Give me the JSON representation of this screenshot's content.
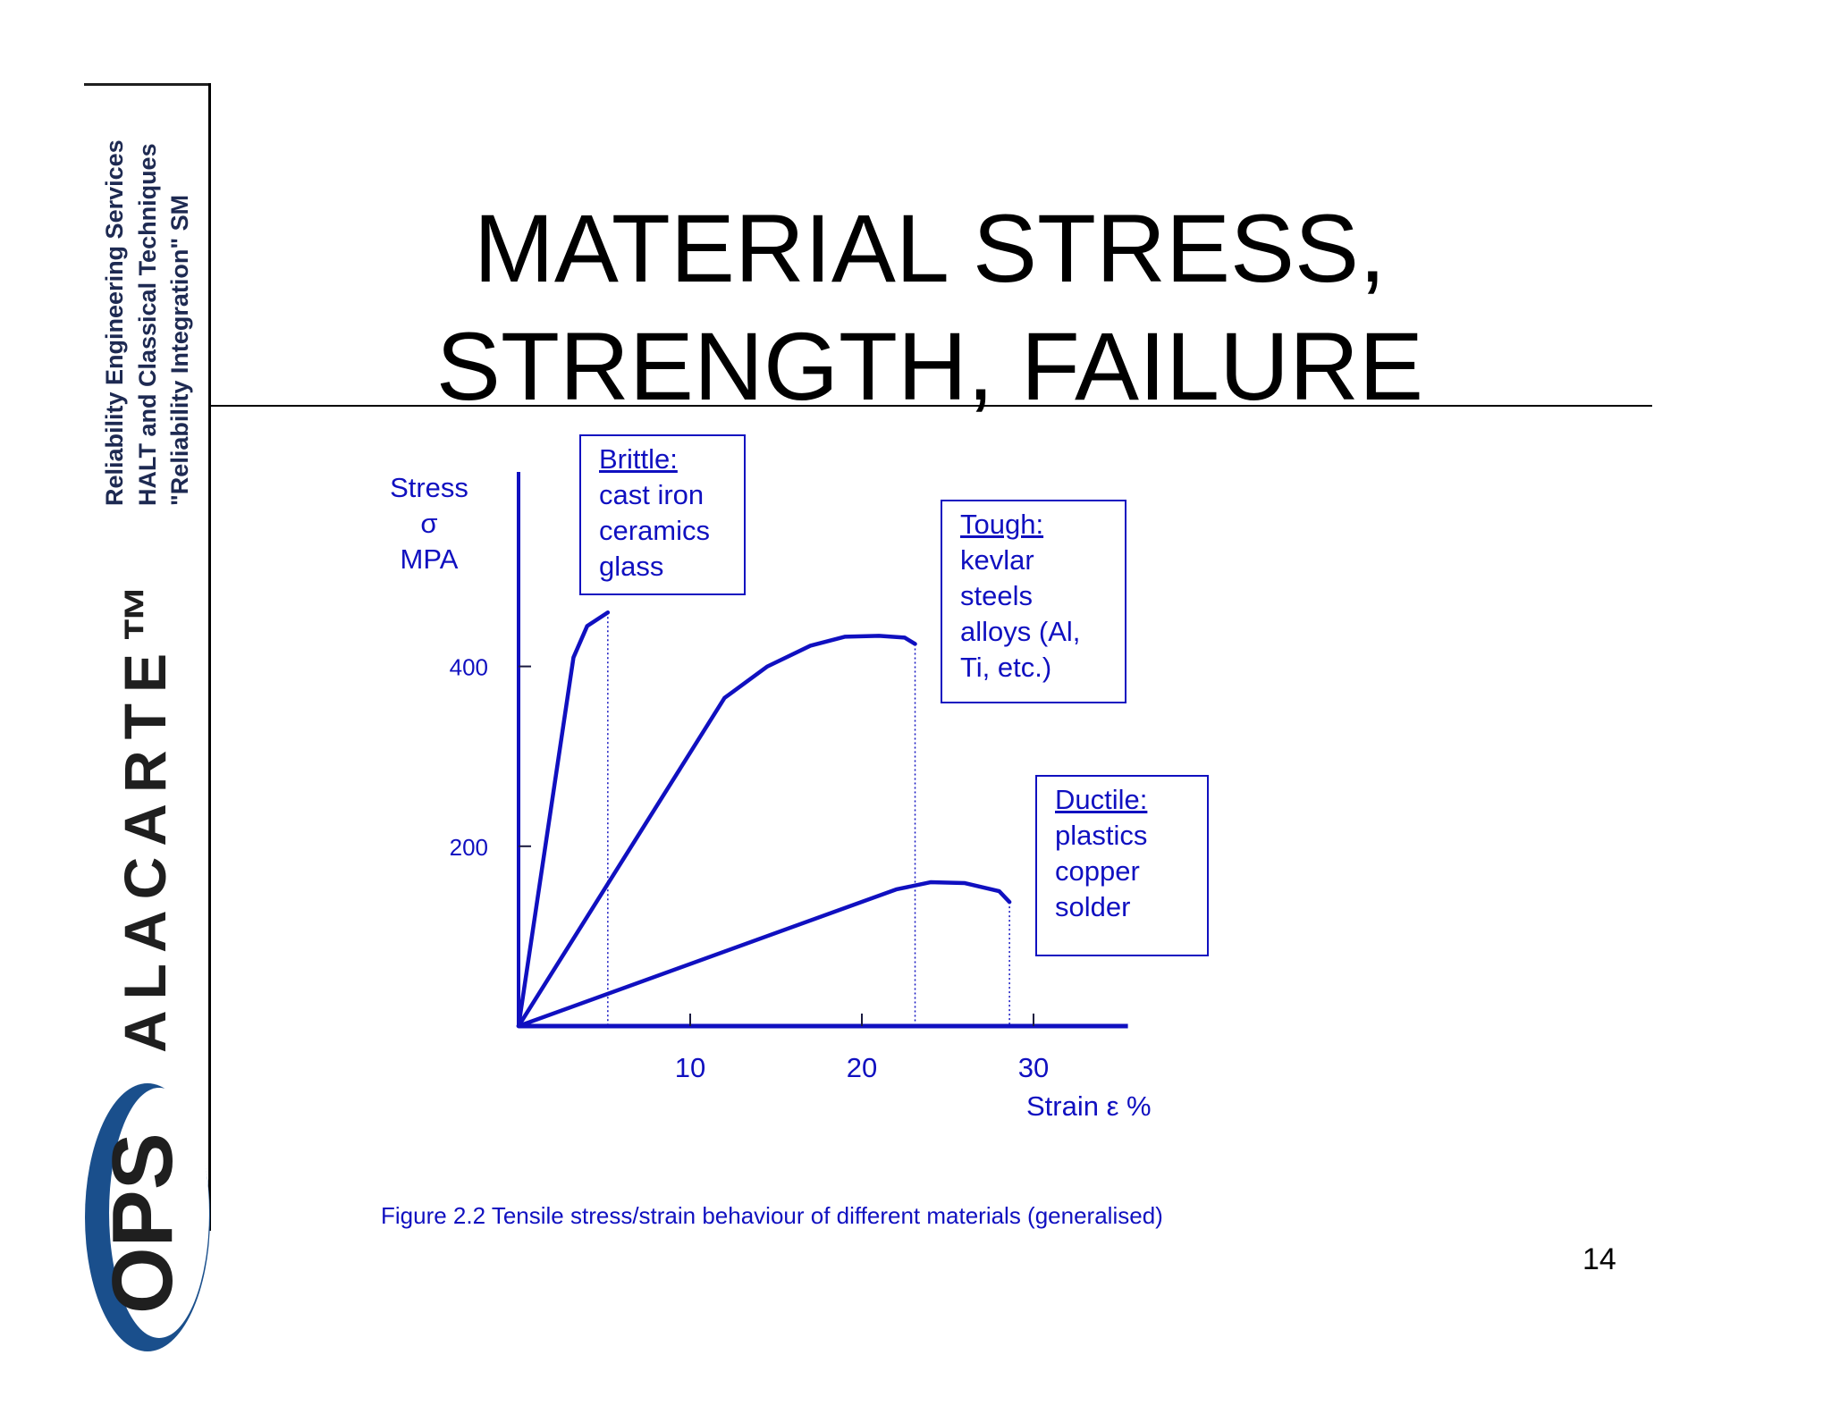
{
  "sidebar": {
    "tagline_line1": "Reliability Engineering Services",
    "tagline_line2": "HALT and Classical Techniques",
    "tagline_line3": "\"Reliability Integration\" SM",
    "brand_name": "ALACARTE™",
    "logo_text": "OPS",
    "colors": {
      "navy": "#1e2a52",
      "logo_blue": "#1a4f8c"
    }
  },
  "slide": {
    "title_line1": "MATERIAL STRESS,",
    "title_line2": "STRENGTH, FAILURE",
    "caption": "Figure 2.2 Tensile stress/strain behaviour of different materials (generalised)",
    "page_number": "14"
  },
  "chart_data": {
    "type": "line",
    "ylabel_lines": [
      "Stress",
      "σ",
      "MPA"
    ],
    "xlabel": "Strain ε %",
    "x_ticks": [
      10,
      20,
      30
    ],
    "y_ticks": [
      200,
      400
    ],
    "xlim": [
      0,
      36
    ],
    "ylim": [
      0,
      620
    ],
    "line_color": "#1010c0",
    "series": [
      {
        "name": "Brittle",
        "points": [
          [
            0,
            0
          ],
          [
            3.2,
            410
          ],
          [
            4,
            445
          ],
          [
            5.2,
            460
          ]
        ],
        "failure_strain": 5.2
      },
      {
        "name": "Tough",
        "points": [
          [
            0,
            0
          ],
          [
            12,
            365
          ],
          [
            12.5,
            372
          ],
          [
            14.5,
            400
          ],
          [
            17,
            423
          ],
          [
            19,
            433
          ],
          [
            21,
            434
          ],
          [
            22.5,
            432
          ],
          [
            23.1,
            425
          ]
        ],
        "failure_strain": 23.1
      },
      {
        "name": "Ductile",
        "points": [
          [
            0,
            0
          ],
          [
            22,
            152
          ],
          [
            24,
            160
          ],
          [
            26,
            159
          ],
          [
            28,
            150
          ],
          [
            28.6,
            138
          ]
        ],
        "failure_strain": 28.6
      }
    ],
    "legend": [
      {
        "name": "Brittle:",
        "items": [
          "cast iron",
          "ceramics",
          "glass"
        ]
      },
      {
        "name": "Tough:",
        "items": [
          "kevlar",
          "steels",
          "alloys (Al,",
          "Ti, etc.)"
        ]
      },
      {
        "name": "Ductile:",
        "items": [
          "plastics",
          "copper",
          "solder"
        ]
      }
    ]
  }
}
